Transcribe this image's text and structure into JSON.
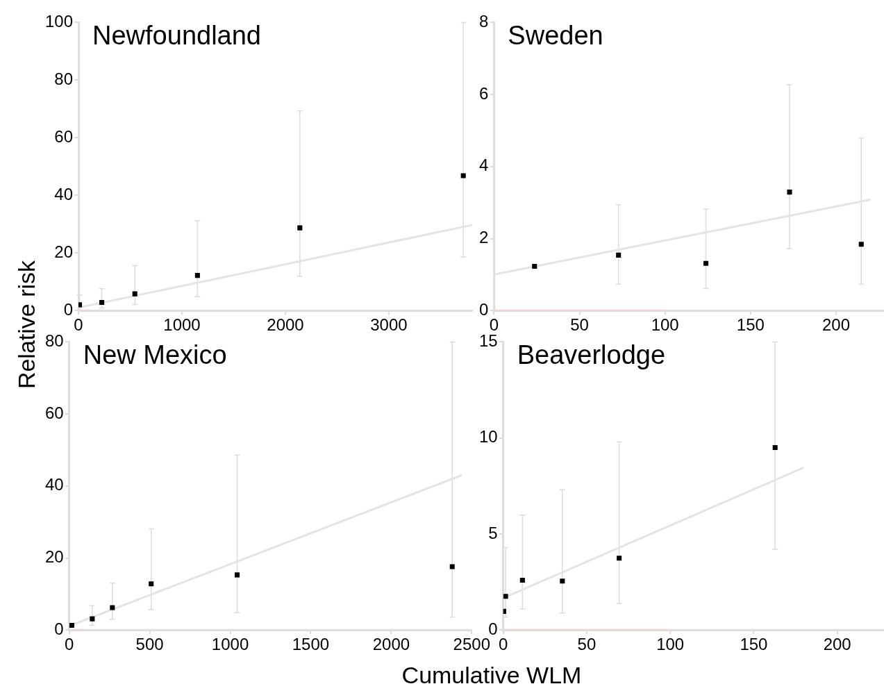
{
  "chart_data": [
    {
      "type": "scatter",
      "title": "Newfoundland",
      "ylabel": "Relative risk",
      "xlim": [
        0,
        3806
      ],
      "xticks": [
        0,
        1000,
        2000,
        3000
      ],
      "ylim": [
        0,
        100
      ],
      "yticks": [
        0,
        20,
        40,
        60,
        80,
        100
      ],
      "series": [
        {
          "type": "line",
          "marker": "none",
          "color": "#f8d0d0",
          "x": [
            0,
            100
          ],
          "values": [
            0,
            0
          ]
        },
        {
          "type": "line",
          "marker": "none",
          "color": "#e4e4e4",
          "x": [
            0,
            3806
          ],
          "values": [
            1,
            29.7
          ]
        },
        {
          "marker": "square",
          "color": "#000000",
          "x": [
            10,
            225,
            545,
            1150,
            2140,
            3720
          ],
          "values": [
            2.0,
            2.8,
            5.8,
            12.2,
            28.7,
            46.8
          ],
          "errors": [
            [
              0.9,
              5.4
            ],
            [
              0.9,
              7.6
            ],
            [
              2.1,
              15.6
            ],
            [
              4.8,
              31.2
            ],
            [
              11.9,
              69.3
            ],
            [
              18.6,
              100
            ]
          ]
        }
      ]
    },
    {
      "type": "scatter",
      "title": "Sweden",
      "xlim": [
        0,
        228
      ],
      "xticks": [
        0,
        50,
        100,
        150,
        200
      ],
      "ylim": [
        0,
        8
      ],
      "yticks": [
        0,
        2,
        4,
        6,
        8
      ],
      "series": [
        {
          "type": "line",
          "marker": "none",
          "color": "#f8d0d0",
          "x": [
            0,
            100
          ],
          "values": [
            0,
            0
          ]
        },
        {
          "type": "line",
          "marker": "none",
          "color": "#e4e4e4",
          "x": [
            0,
            220
          ],
          "values": [
            1.0,
            3.08
          ]
        },
        {
          "marker": "square",
          "color": "#000000",
          "x": [
            23.7,
            72.8,
            123.9,
            172.8,
            214.7
          ],
          "values": [
            1.23,
            1.54,
            1.31,
            3.29,
            1.84
          ],
          "errors": [
            null,
            [
              0.73,
              2.94
            ],
            [
              0.61,
              2.82
            ],
            [
              1.72,
              6.27
            ],
            [
              0.73,
              4.79
            ]
          ]
        }
      ]
    },
    {
      "type": "scatter",
      "title": "New Mexico",
      "xlabel": "Cumulative WLM",
      "xlim": [
        0,
        2500
      ],
      "xticks": [
        0,
        500,
        1000,
        1500,
        2000,
        2500
      ],
      "ylim": [
        0,
        80
      ],
      "yticks": [
        0,
        20,
        40,
        60,
        80
      ],
      "series": [
        {
          "type": "line",
          "marker": "none",
          "color": "#f8d0d0",
          "x": [
            0,
            100
          ],
          "values": [
            0,
            0
          ]
        },
        {
          "type": "line",
          "marker": "none",
          "color": "#e4e4e4",
          "x": [
            0,
            2439
          ],
          "values": [
            1.1,
            43.0
          ]
        },
        {
          "marker": "square",
          "color": "#000000",
          "x": [
            16,
            143,
            268,
            509,
            1043,
            2379
          ],
          "values": [
            1.3,
            3.1,
            6.2,
            12.8,
            15.3,
            17.6
          ],
          "errors": [
            null,
            [
              1.3,
              6.8
            ],
            [
              3.0,
              13.0
            ],
            [
              5.7,
              28.1
            ],
            [
              4.8,
              48.6
            ],
            [
              3.6,
              80
            ]
          ]
        }
      ]
    },
    {
      "type": "scatter",
      "title": "Beaverlodge",
      "xlim": [
        0,
        228
      ],
      "xticks": [
        0,
        50,
        100,
        150,
        200
      ],
      "ylim": [
        0,
        15
      ],
      "yticks": [
        0,
        5,
        10,
        15
      ],
      "series": [
        {
          "type": "line",
          "marker": "none",
          "color": "#f8d0d0",
          "x": [
            0,
            100
          ],
          "values": [
            0,
            0
          ]
        },
        {
          "type": "line",
          "marker": "none",
          "color": "#e4e4e4",
          "x": [
            1.4,
            180
          ],
          "values": [
            1.72,
            8.46
          ]
        },
        {
          "marker": "square",
          "color": "#000000",
          "x": [
            0.3,
            1.4,
            11.5,
            35.4,
            69.4,
            162.8
          ],
          "values": [
            0.97,
            1.75,
            2.59,
            2.55,
            3.74,
            9.5
          ],
          "errors": [
            null,
            [
              0.68,
              4.29
            ],
            [
              1.1,
              5.98
            ],
            [
              0.88,
              7.31
            ],
            [
              1.38,
              9.8
            ],
            [
              4.2,
              15
            ]
          ]
        }
      ]
    }
  ]
}
